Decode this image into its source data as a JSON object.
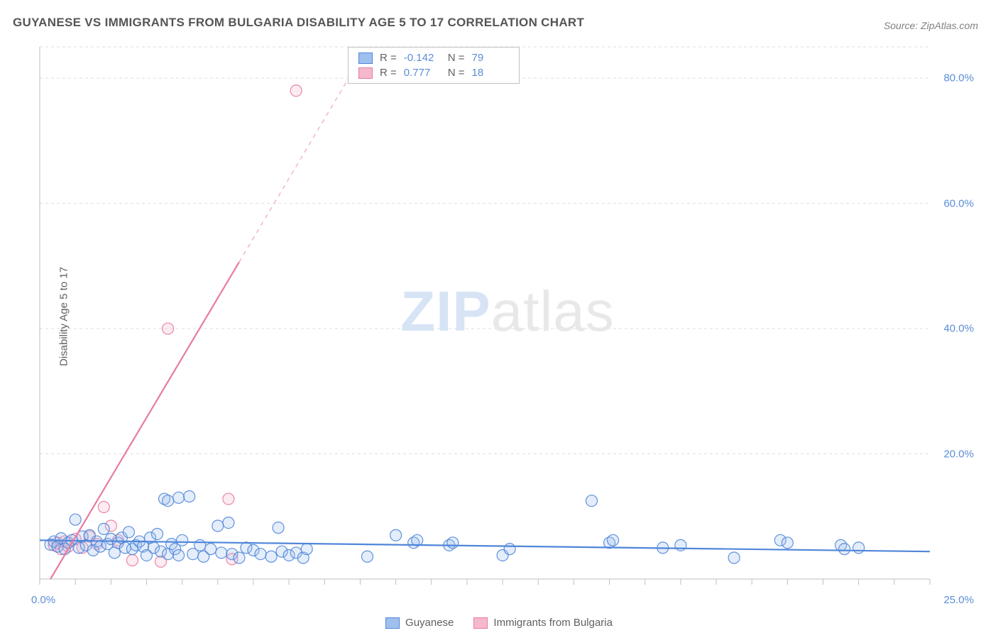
{
  "title": "GUYANESE VS IMMIGRANTS FROM BULGARIA DISABILITY AGE 5 TO 17 CORRELATION CHART",
  "source": "Source: ZipAtlas.com",
  "ylabel": "Disability Age 5 to 17",
  "watermark_a": "ZIP",
  "watermark_b": "atlas",
  "chart": {
    "type": "scatter",
    "xlim": [
      0,
      25
    ],
    "ylim": [
      0,
      85
    ],
    "x_ticks_minor_step": 1,
    "x_tick_labels": {
      "left": "0.0%",
      "right": "25.0%"
    },
    "y_ticks": [
      20,
      40,
      60,
      80
    ],
    "y_tick_labels": [
      "20.0%",
      "40.0%",
      "60.0%",
      "80.0%"
    ],
    "grid_color": "#dddddd",
    "grid_dash": "4,4",
    "axis_color": "#bfbfbf",
    "background_color": "#ffffff",
    "marker_radius": 8,
    "marker_fill_opacity": 0.28,
    "marker_stroke_opacity": 0.9,
    "marker_stroke_width": 1.2,
    "trend_line_width": 2.2,
    "series": [
      {
        "name": "Guyanese",
        "color": "#4f86d9",
        "fill": "#9fc0ee",
        "R": "-0.142",
        "N": "79",
        "trend": {
          "x1": 0,
          "y1": 6.2,
          "x2": 25,
          "y2": 4.4,
          "dash_after_x": null
        },
        "points": [
          [
            0.3,
            5.5
          ],
          [
            0.4,
            6.0
          ],
          [
            0.5,
            5.2
          ],
          [
            0.6,
            6.5
          ],
          [
            0.7,
            4.8
          ],
          [
            0.8,
            5.8
          ],
          [
            0.9,
            6.2
          ],
          [
            1.0,
            9.5
          ],
          [
            1.1,
            5.0
          ],
          [
            1.2,
            6.8
          ],
          [
            1.3,
            5.4
          ],
          [
            1.4,
            7.0
          ],
          [
            1.5,
            4.6
          ],
          [
            1.6,
            6.0
          ],
          [
            1.7,
            5.2
          ],
          [
            1.8,
            8.0
          ],
          [
            1.9,
            5.6
          ],
          [
            2.0,
            6.4
          ],
          [
            2.1,
            4.2
          ],
          [
            2.2,
            5.8
          ],
          [
            2.3,
            6.6
          ],
          [
            2.4,
            5.0
          ],
          [
            2.5,
            7.5
          ],
          [
            2.6,
            4.8
          ],
          [
            2.7,
            5.4
          ],
          [
            2.8,
            6.0
          ],
          [
            2.9,
            5.2
          ],
          [
            3.0,
            3.8
          ],
          [
            3.1,
            6.6
          ],
          [
            3.2,
            5.0
          ],
          [
            3.3,
            7.2
          ],
          [
            3.4,
            4.4
          ],
          [
            3.5,
            12.8
          ],
          [
            3.6,
            12.5
          ],
          [
            3.6,
            4.0
          ],
          [
            3.7,
            5.6
          ],
          [
            3.8,
            4.8
          ],
          [
            3.9,
            13.0
          ],
          [
            3.9,
            3.8
          ],
          [
            4.0,
            6.2
          ],
          [
            4.2,
            13.2
          ],
          [
            4.3,
            4.0
          ],
          [
            4.5,
            5.4
          ],
          [
            4.6,
            3.6
          ],
          [
            4.8,
            4.8
          ],
          [
            5.0,
            8.5
          ],
          [
            5.1,
            4.2
          ],
          [
            5.3,
            9.0
          ],
          [
            5.4,
            4.0
          ],
          [
            5.6,
            3.4
          ],
          [
            5.8,
            5.0
          ],
          [
            6.0,
            4.6
          ],
          [
            6.2,
            4.0
          ],
          [
            6.5,
            3.6
          ],
          [
            6.7,
            8.2
          ],
          [
            6.8,
            4.4
          ],
          [
            7.0,
            3.8
          ],
          [
            7.2,
            4.2
          ],
          [
            7.4,
            3.4
          ],
          [
            7.5,
            4.8
          ],
          [
            9.2,
            3.6
          ],
          [
            10.0,
            7.0
          ],
          [
            10.5,
            5.8
          ],
          [
            10.6,
            6.2
          ],
          [
            11.5,
            5.4
          ],
          [
            11.6,
            5.8
          ],
          [
            13.0,
            3.8
          ],
          [
            13.2,
            4.8
          ],
          [
            15.5,
            12.5
          ],
          [
            16.0,
            5.8
          ],
          [
            16.1,
            6.2
          ],
          [
            17.5,
            5.0
          ],
          [
            18.0,
            5.4
          ],
          [
            19.5,
            3.4
          ],
          [
            20.8,
            6.2
          ],
          [
            21.0,
            5.8
          ],
          [
            22.5,
            5.4
          ],
          [
            22.6,
            4.8
          ],
          [
            23.0,
            5.0
          ]
        ]
      },
      {
        "name": "Immigrants from Bulgaria",
        "color": "#e87ba0",
        "fill": "#f5b8cd",
        "R": "0.777",
        "N": "18",
        "trend": {
          "x1": 0.3,
          "y1": 0,
          "x2": 9.2,
          "y2": 85,
          "dash_after_x": 5.6
        },
        "points": [
          [
            0.4,
            5.4
          ],
          [
            0.5,
            5.8
          ],
          [
            0.6,
            4.8
          ],
          [
            0.7,
            6.0
          ],
          [
            0.8,
            5.2
          ],
          [
            1.0,
            6.4
          ],
          [
            1.2,
            5.0
          ],
          [
            1.4,
            6.8
          ],
          [
            1.6,
            5.6
          ],
          [
            1.8,
            11.5
          ],
          [
            2.0,
            8.5
          ],
          [
            2.2,
            6.2
          ],
          [
            2.6,
            3.0
          ],
          [
            3.4,
            2.8
          ],
          [
            3.6,
            40.0
          ],
          [
            5.3,
            12.8
          ],
          [
            5.4,
            3.2
          ],
          [
            7.2,
            78.0
          ]
        ]
      }
    ]
  },
  "legend": [
    {
      "label": "Guyanese",
      "fill": "#9fc0ee",
      "stroke": "#4f86d9"
    },
    {
      "label": "Immigrants from Bulgaria",
      "fill": "#f5b8cd",
      "stroke": "#e87ba0"
    }
  ]
}
